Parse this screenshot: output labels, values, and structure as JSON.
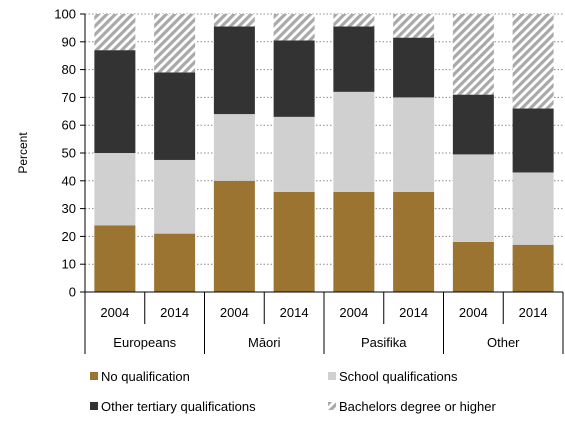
{
  "chart_data": {
    "type": "bar",
    "stacked": true,
    "ylabel": "Percent",
    "ylim": [
      0,
      100
    ],
    "yticks": [
      0,
      10,
      20,
      30,
      40,
      50,
      60,
      70,
      80,
      90,
      100
    ],
    "grid": "horizontal dotted",
    "groups": [
      {
        "name": "Europeans",
        "categories": [
          "2004",
          "2014"
        ]
      },
      {
        "name": "Māori",
        "categories": [
          "2004",
          "2014"
        ]
      },
      {
        "name": "Pasifika",
        "categories": [
          "2004",
          "2014"
        ]
      },
      {
        "name": "Other",
        "categories": [
          "2004",
          "2014"
        ]
      }
    ],
    "series": [
      {
        "name": "No qualification",
        "color": "#9a7430",
        "pattern": "solid",
        "values": [
          24,
          21,
          40,
          36,
          36,
          36,
          18,
          17
        ]
      },
      {
        "name": "School qualifications",
        "color": "#d0d0d0",
        "pattern": "solid",
        "values": [
          26,
          26.5,
          24,
          27,
          36,
          34,
          31.5,
          26
        ]
      },
      {
        "name": "Other tertiary qualifications",
        "color": "#333333",
        "pattern": "solid",
        "values": [
          37,
          31.5,
          31.5,
          27.5,
          23.5,
          21.5,
          21.5,
          23
        ]
      },
      {
        "name": "Bachelors degree or higher",
        "color": "#a9a9a9",
        "pattern": "diagonal-hatch",
        "values": [
          13,
          21,
          4.5,
          9.5,
          4.5,
          8.5,
          29,
          34
        ]
      }
    ],
    "legend_position": "bottom"
  }
}
